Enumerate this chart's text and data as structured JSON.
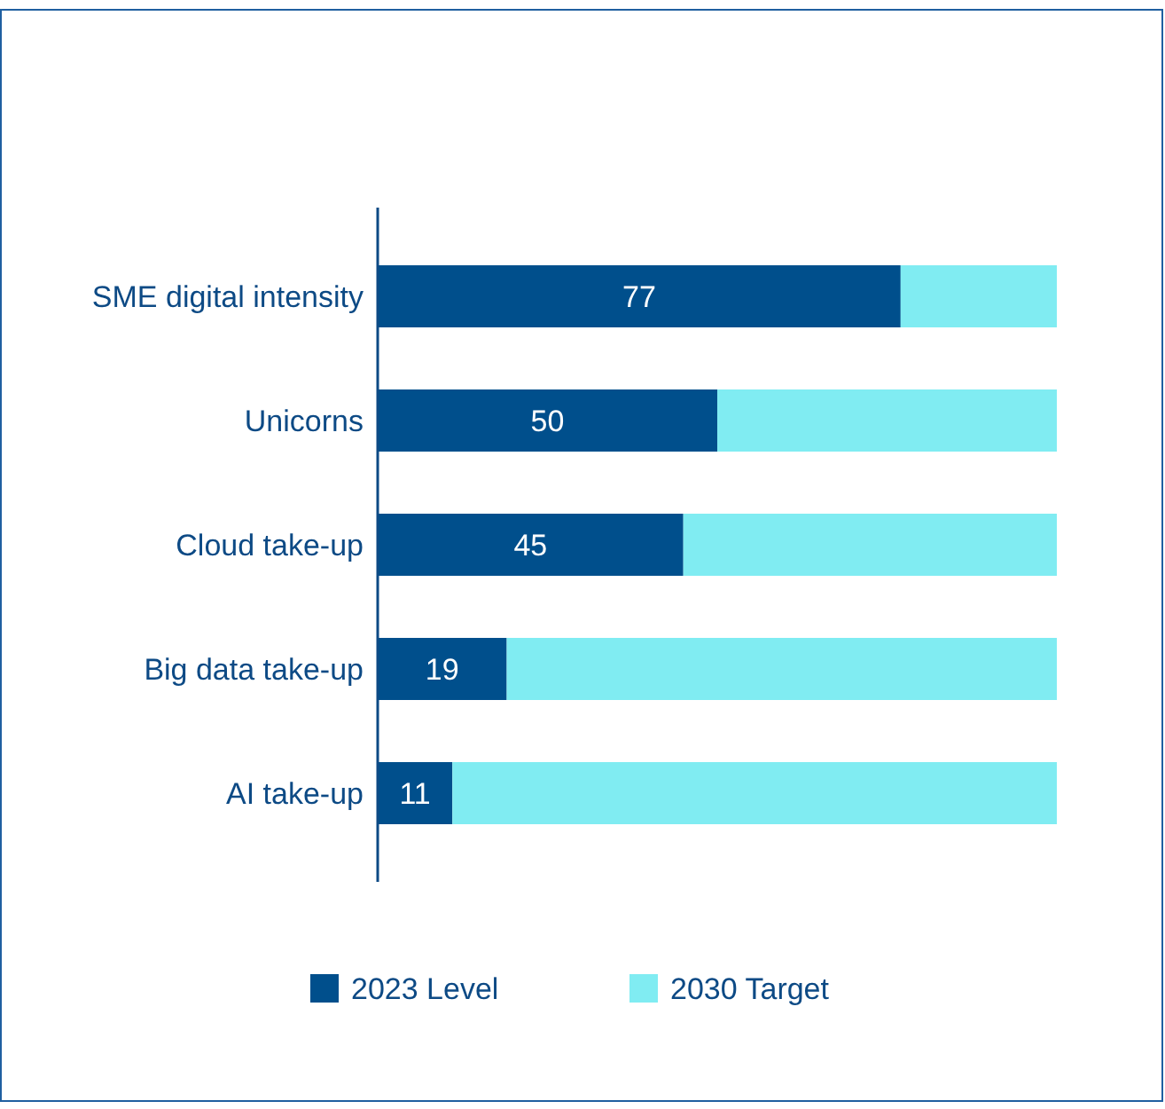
{
  "chart_data": {
    "type": "bar",
    "orientation": "horizontal",
    "stacked": true,
    "categories": [
      "SME digital intensity",
      "Unicorns",
      "Cloud take-up",
      "Big data take-up",
      "AI take-up"
    ],
    "series": [
      {
        "name": "2023 Level",
        "color": "#004f8c",
        "values": [
          77,
          50,
          45,
          19,
          11
        ],
        "value_labels": [
          "77",
          "50",
          "45",
          "19",
          "11"
        ]
      },
      {
        "name": "2030 Target",
        "color": "#80ecf2",
        "values": [
          23,
          50,
          55,
          81,
          89
        ]
      }
    ],
    "tick_labels": "y",
    "legend": "bottom"
  }
}
